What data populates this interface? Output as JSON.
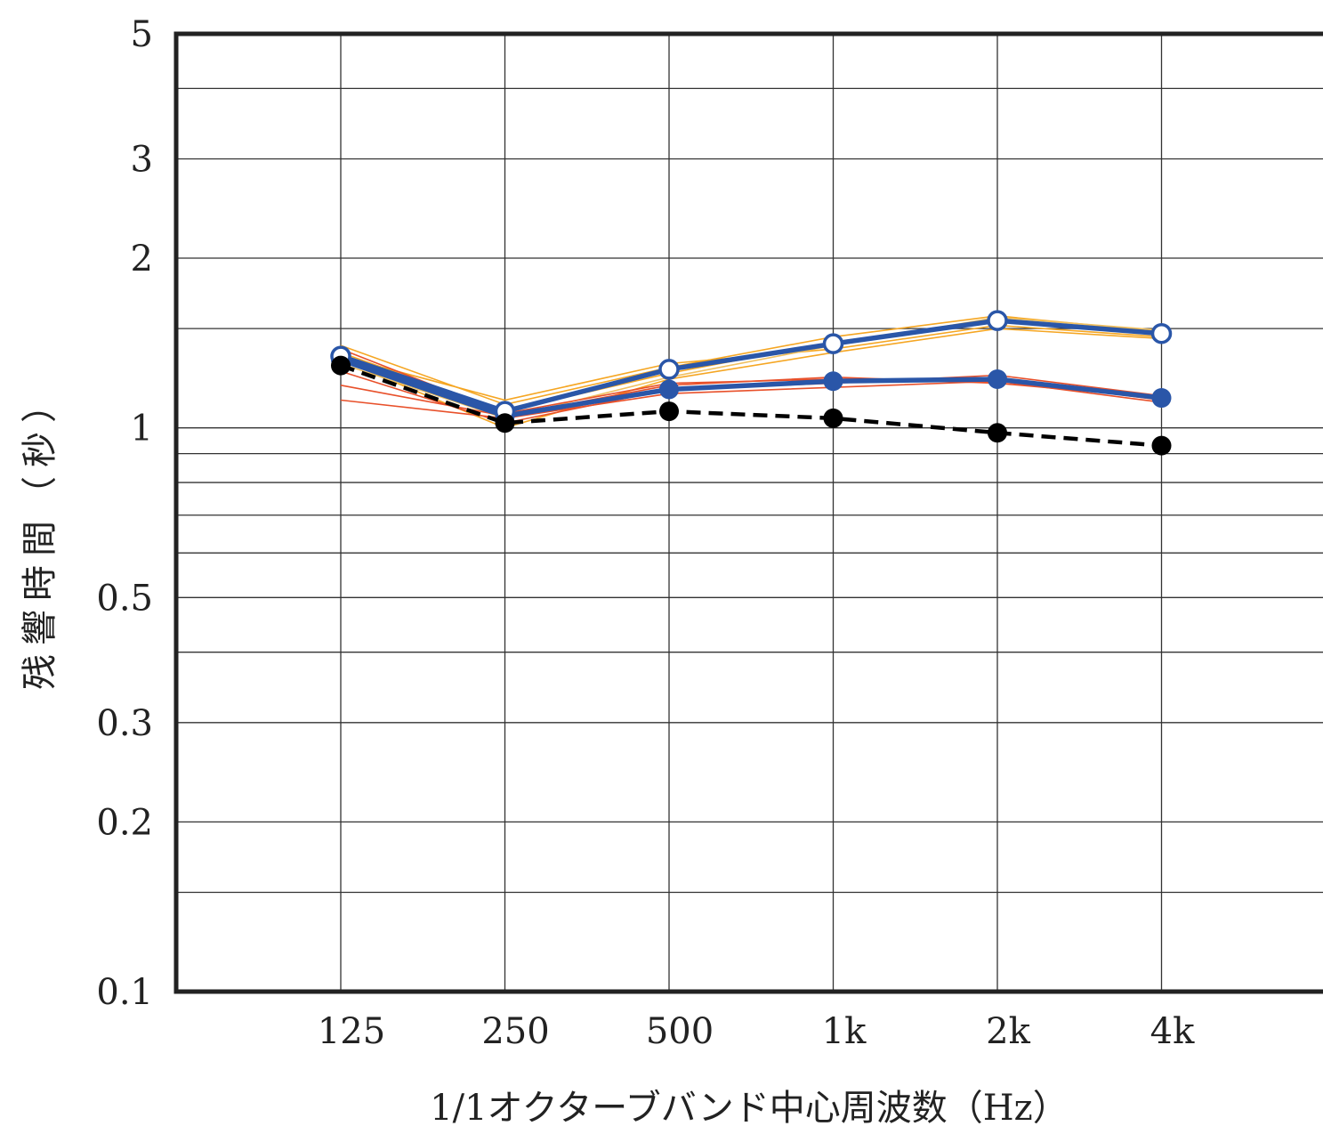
{
  "chart_data": {
    "type": "line",
    "x_scale": "categorical",
    "y_scale": "log",
    "categories": [
      "125",
      "250",
      "500",
      "1k",
      "2k",
      "4k"
    ],
    "xlabel": "1/1オクターブバンド中心周波数（Hz）",
    "ylabel": "残響時間（秒）",
    "ylim": [
      0.1,
      5
    ],
    "y_ticks": [
      0.1,
      0.2,
      0.3,
      0.5,
      1,
      2,
      3,
      5
    ],
    "y_tick_labels": [
      "0.1",
      "0.2",
      "0.3",
      "0.5",
      "1",
      "2",
      "3",
      "5"
    ],
    "y_minor_gridlines": [
      0.15,
      0.4,
      0.6,
      0.7,
      0.8,
      0.9,
      1.5,
      4
    ],
    "grid": true,
    "legend": "none",
    "series": [
      {
        "color": "#f5a623",
        "style": "thin",
        "values": [
          1.4,
          1.1,
          1.28,
          1.45,
          1.58,
          1.48
        ]
      },
      {
        "color": "#f5a623",
        "style": "thin",
        "values": [
          1.36,
          1.07,
          1.25,
          1.42,
          1.55,
          1.46
        ]
      },
      {
        "color": "#f5a623",
        "style": "thin",
        "values": [
          1.34,
          1.12,
          1.3,
          1.38,
          1.52,
          1.45
        ]
      },
      {
        "color": "#f5a623",
        "style": "thin",
        "values": [
          1.32,
          1.0,
          1.22,
          1.36,
          1.5,
          1.44
        ]
      },
      {
        "color": "#f0c060",
        "style": "thin",
        "values": [
          1.3,
          1.04,
          1.23,
          1.4,
          1.57,
          1.49
        ]
      },
      {
        "color": "#e8502a",
        "style": "thin",
        "values": [
          1.38,
          1.06,
          1.2,
          1.22,
          1.22,
          1.12
        ]
      },
      {
        "color": "#e8502a",
        "style": "thin",
        "values": [
          1.26,
          1.02,
          1.17,
          1.2,
          1.24,
          1.14
        ]
      },
      {
        "color": "#e8502a",
        "style": "thin",
        "values": [
          1.12,
          1.04,
          1.15,
          1.18,
          1.21,
          1.11
        ]
      },
      {
        "color": "#e8502a",
        "style": "thin",
        "values": [
          1.19,
          1.05,
          1.19,
          1.23,
          1.2,
          1.13
        ]
      },
      {
        "color": "#2a56a8",
        "style": "open-marker",
        "values": [
          1.34,
          1.07,
          1.27,
          1.41,
          1.55,
          1.47
        ]
      },
      {
        "color": "#2a56a8",
        "style": "filled-marker",
        "values": [
          1.32,
          1.05,
          1.17,
          1.21,
          1.22,
          1.13
        ]
      },
      {
        "color": "#000000",
        "style": "dashed-black",
        "values": [
          1.29,
          1.02,
          1.07,
          1.04,
          0.98,
          0.93
        ]
      }
    ]
  }
}
